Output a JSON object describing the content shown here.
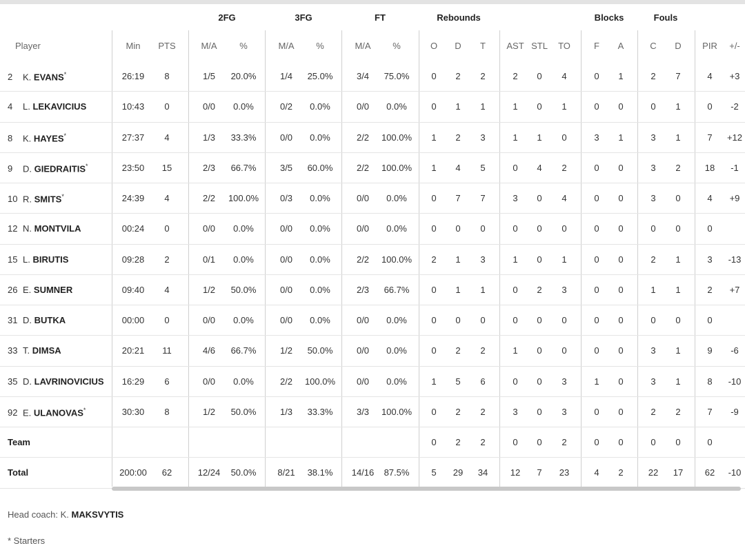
{
  "groups": [
    {
      "id": "2fg",
      "label": "2FG"
    },
    {
      "id": "3fg",
      "label": "3FG"
    },
    {
      "id": "ft",
      "label": "FT"
    },
    {
      "id": "reb",
      "label": "Rebounds"
    },
    {
      "id": "blk",
      "label": "Blocks"
    },
    {
      "id": "fouls",
      "label": "Fouls"
    }
  ],
  "columns": [
    "Player",
    "Min",
    "PTS",
    "M/A",
    "%",
    "M/A",
    "%",
    "M/A",
    "%",
    "O",
    "D",
    "T",
    "AST",
    "STL",
    "TO",
    "F",
    "A",
    "C",
    "D",
    "PIR",
    "+/-"
  ],
  "rows": [
    {
      "no": "2",
      "first": "K.",
      "last": "EVANS",
      "starter": "*",
      "v": [
        "26:19",
        "8",
        "1/5",
        "20.0%",
        "1/4",
        "25.0%",
        "3/4",
        "75.0%",
        "0",
        "2",
        "2",
        "2",
        "0",
        "4",
        "0",
        "1",
        "2",
        "7",
        "4",
        "+3"
      ]
    },
    {
      "no": "4",
      "first": "L.",
      "last": "LEKAVICIUS",
      "starter": "",
      "v": [
        "10:43",
        "0",
        "0/0",
        "0.0%",
        "0/2",
        "0.0%",
        "0/0",
        "0.0%",
        "0",
        "1",
        "1",
        "1",
        "0",
        "1",
        "0",
        "0",
        "0",
        "1",
        "0",
        "-2"
      ]
    },
    {
      "no": "8",
      "first": "K.",
      "last": "HAYES",
      "starter": "*",
      "v": [
        "27:37",
        "4",
        "1/3",
        "33.3%",
        "0/0",
        "0.0%",
        "2/2",
        "100.0%",
        "1",
        "2",
        "3",
        "1",
        "1",
        "0",
        "3",
        "1",
        "3",
        "1",
        "7",
        "+12"
      ]
    },
    {
      "no": "9",
      "first": "D.",
      "last": "GIEDRAITIS",
      "starter": "*",
      "v": [
        "23:50",
        "15",
        "2/3",
        "66.7%",
        "3/5",
        "60.0%",
        "2/2",
        "100.0%",
        "1",
        "4",
        "5",
        "0",
        "4",
        "2",
        "0",
        "0",
        "3",
        "2",
        "18",
        "-1"
      ]
    },
    {
      "no": "10",
      "first": "R.",
      "last": "SMITS",
      "starter": "*",
      "v": [
        "24:39",
        "4",
        "2/2",
        "100.0%",
        "0/3",
        "0.0%",
        "0/0",
        "0.0%",
        "0",
        "7",
        "7",
        "3",
        "0",
        "4",
        "0",
        "0",
        "3",
        "0",
        "4",
        "+9"
      ]
    },
    {
      "no": "12",
      "first": "N.",
      "last": "MONTVILA",
      "starter": "",
      "v": [
        "00:24",
        "0",
        "0/0",
        "0.0%",
        "0/0",
        "0.0%",
        "0/0",
        "0.0%",
        "0",
        "0",
        "0",
        "0",
        "0",
        "0",
        "0",
        "0",
        "0",
        "0",
        "0",
        ""
      ]
    },
    {
      "no": "15",
      "first": "L.",
      "last": "BIRUTIS",
      "starter": "",
      "v": [
        "09:28",
        "2",
        "0/1",
        "0.0%",
        "0/0",
        "0.0%",
        "2/2",
        "100.0%",
        "2",
        "1",
        "3",
        "1",
        "0",
        "1",
        "0",
        "0",
        "2",
        "1",
        "3",
        "-13"
      ]
    },
    {
      "no": "26",
      "first": "E.",
      "last": "SUMNER",
      "starter": "",
      "v": [
        "09:40",
        "4",
        "1/2",
        "50.0%",
        "0/0",
        "0.0%",
        "2/3",
        "66.7%",
        "0",
        "1",
        "1",
        "0",
        "2",
        "3",
        "0",
        "0",
        "1",
        "1",
        "2",
        "+7"
      ]
    },
    {
      "no": "31",
      "first": "D.",
      "last": "BUTKA",
      "starter": "",
      "v": [
        "00:00",
        "0",
        "0/0",
        "0.0%",
        "0/0",
        "0.0%",
        "0/0",
        "0.0%",
        "0",
        "0",
        "0",
        "0",
        "0",
        "0",
        "0",
        "0",
        "0",
        "0",
        "0",
        ""
      ]
    },
    {
      "no": "33",
      "first": "T.",
      "last": "DIMSA",
      "starter": "",
      "v": [
        "20:21",
        "11",
        "4/6",
        "66.7%",
        "1/2",
        "50.0%",
        "0/0",
        "0.0%",
        "0",
        "2",
        "2",
        "1",
        "0",
        "0",
        "0",
        "0",
        "3",
        "1",
        "9",
        "-6"
      ]
    },
    {
      "no": "35",
      "first": "D.",
      "last": "LAVRINOVICIUS",
      "starter": "",
      "v": [
        "16:29",
        "6",
        "0/0",
        "0.0%",
        "2/2",
        "100.0%",
        "0/0",
        "0.0%",
        "1",
        "5",
        "6",
        "0",
        "0",
        "3",
        "1",
        "0",
        "3",
        "1",
        "8",
        "-10"
      ]
    },
    {
      "no": "92",
      "first": "E.",
      "last": "ULANOVAS",
      "starter": "*",
      "v": [
        "30:30",
        "8",
        "1/2",
        "50.0%",
        "1/3",
        "33.3%",
        "3/3",
        "100.0%",
        "0",
        "2",
        "2",
        "3",
        "0",
        "3",
        "0",
        "0",
        "2",
        "2",
        "7",
        "-9"
      ]
    }
  ],
  "team_row": {
    "label": "Team",
    "v": [
      "",
      "",
      "",
      "",
      "",
      "",
      "",
      "",
      "0",
      "2",
      "2",
      "0",
      "0",
      "2",
      "0",
      "0",
      "0",
      "0",
      "0",
      ""
    ]
  },
  "total_row": {
    "label": "Total",
    "v": [
      "200:00",
      "62",
      "12/24",
      "50.0%",
      "8/21",
      "38.1%",
      "14/16",
      "87.5%",
      "5",
      "29",
      "34",
      "12",
      "7",
      "23",
      "4",
      "2",
      "22",
      "17",
      "62",
      "-10"
    ]
  },
  "footer": {
    "coach_prefix": "Head coach: K.",
    "coach_name": "MAKSVYTIS",
    "starters_note": "* Starters"
  }
}
